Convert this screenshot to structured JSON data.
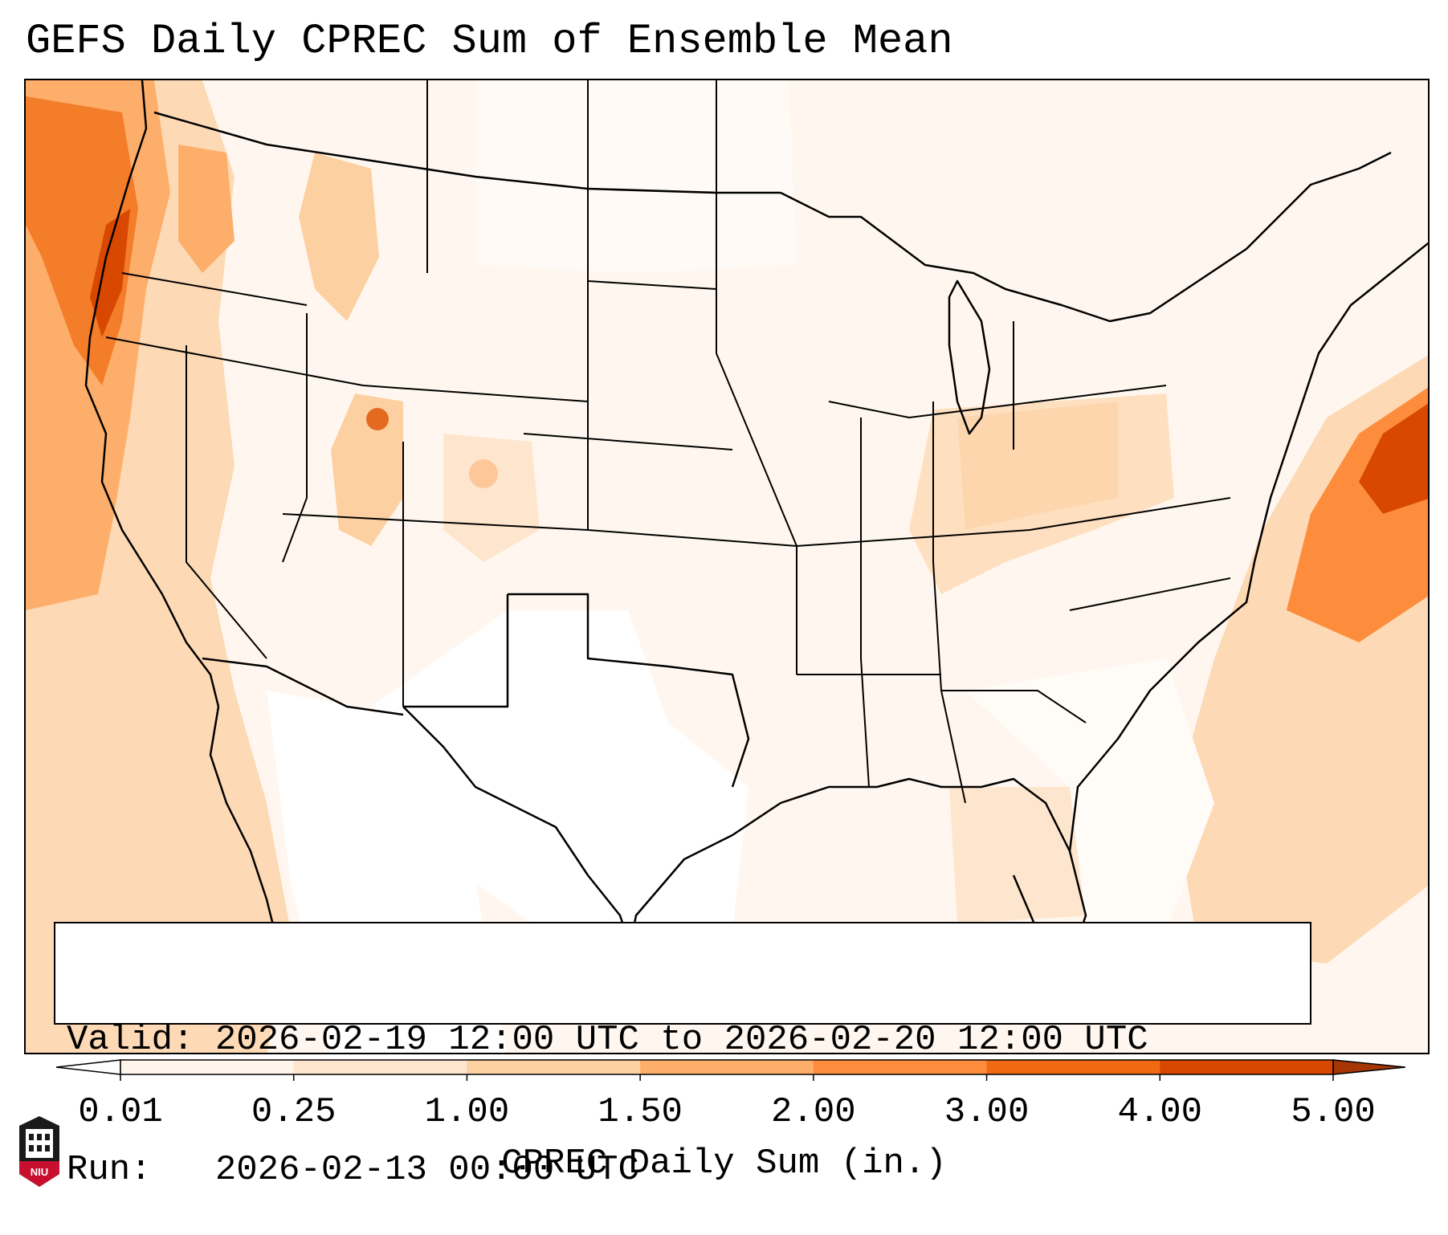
{
  "title": "GEFS Daily CPREC Sum of Ensemble Mean",
  "info": {
    "valid_label": "Valid:",
    "valid_value": "2026-02-19 12:00 UTC to 2026-02-20 12:00 UTC",
    "run_label": "Run:",
    "run_value": "2026-02-13 00:00 UTC"
  },
  "colorbar": {
    "label": "CPREC Daily Sum (in.)",
    "ticks": [
      "0.01",
      "0.25",
      "1.00",
      "1.50",
      "2.00",
      "3.00",
      "4.00",
      "5.00"
    ],
    "colors": [
      "#fff5eb",
      "#fee6ce",
      "#fdd0a2",
      "#fdae6b",
      "#fd8d3c",
      "#f16913",
      "#d94801"
    ],
    "under_color": "#ffffff",
    "over_color": "#a63603"
  },
  "logo": {
    "text": "NIU",
    "icon": "university-tower-icon"
  },
  "map": {
    "region": "Continental United States",
    "background_color": "#fff7ef",
    "max_color": "#d94801"
  }
}
